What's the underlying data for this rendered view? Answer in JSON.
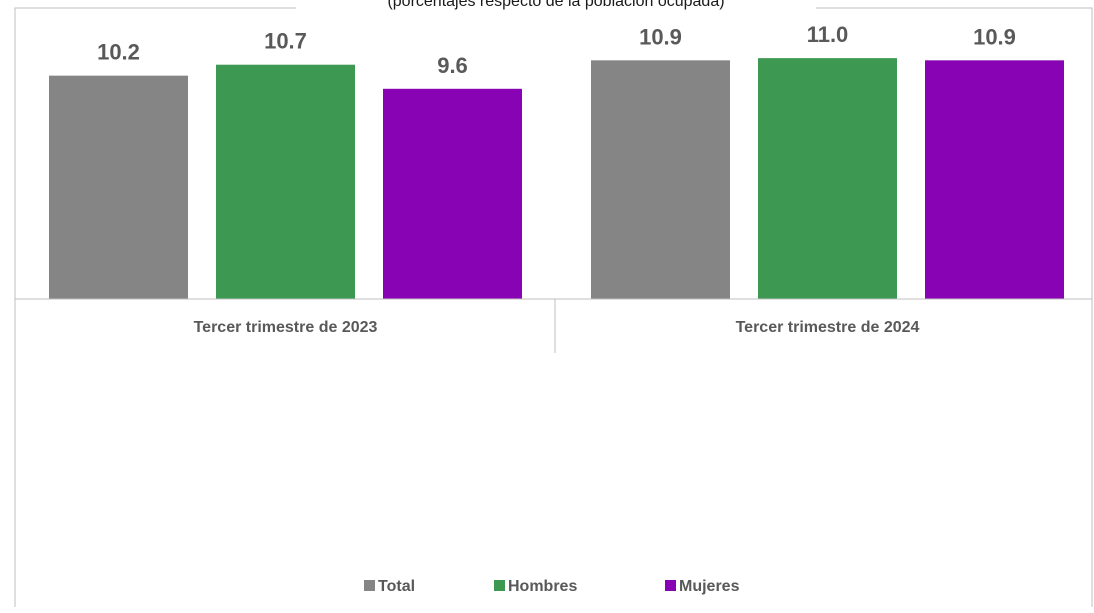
{
  "subtitle": "(porcentajes respecto de la población ocupada)",
  "chart_data": {
    "type": "bar",
    "categories": [
      "Tercer trimestre de 2023",
      "Tercer trimestre de 2024"
    ],
    "series": [
      {
        "name": "Total",
        "color": "#858585",
        "values": [
          10.2,
          10.9
        ]
      },
      {
        "name": "Hombres",
        "color": "#3d9851",
        "values": [
          10.7,
          11.0
        ]
      },
      {
        "name": "Mujeres",
        "color": "#8703b4",
        "values": [
          9.6,
          10.9
        ]
      }
    ],
    "data_labels": [
      [
        "10.2",
        "10.9"
      ],
      [
        "10.7",
        "11.0"
      ],
      [
        "9.6",
        "10.9"
      ]
    ],
    "ylim": [
      0,
      11.6
    ],
    "grid": false,
    "legend_position": "bottom"
  }
}
